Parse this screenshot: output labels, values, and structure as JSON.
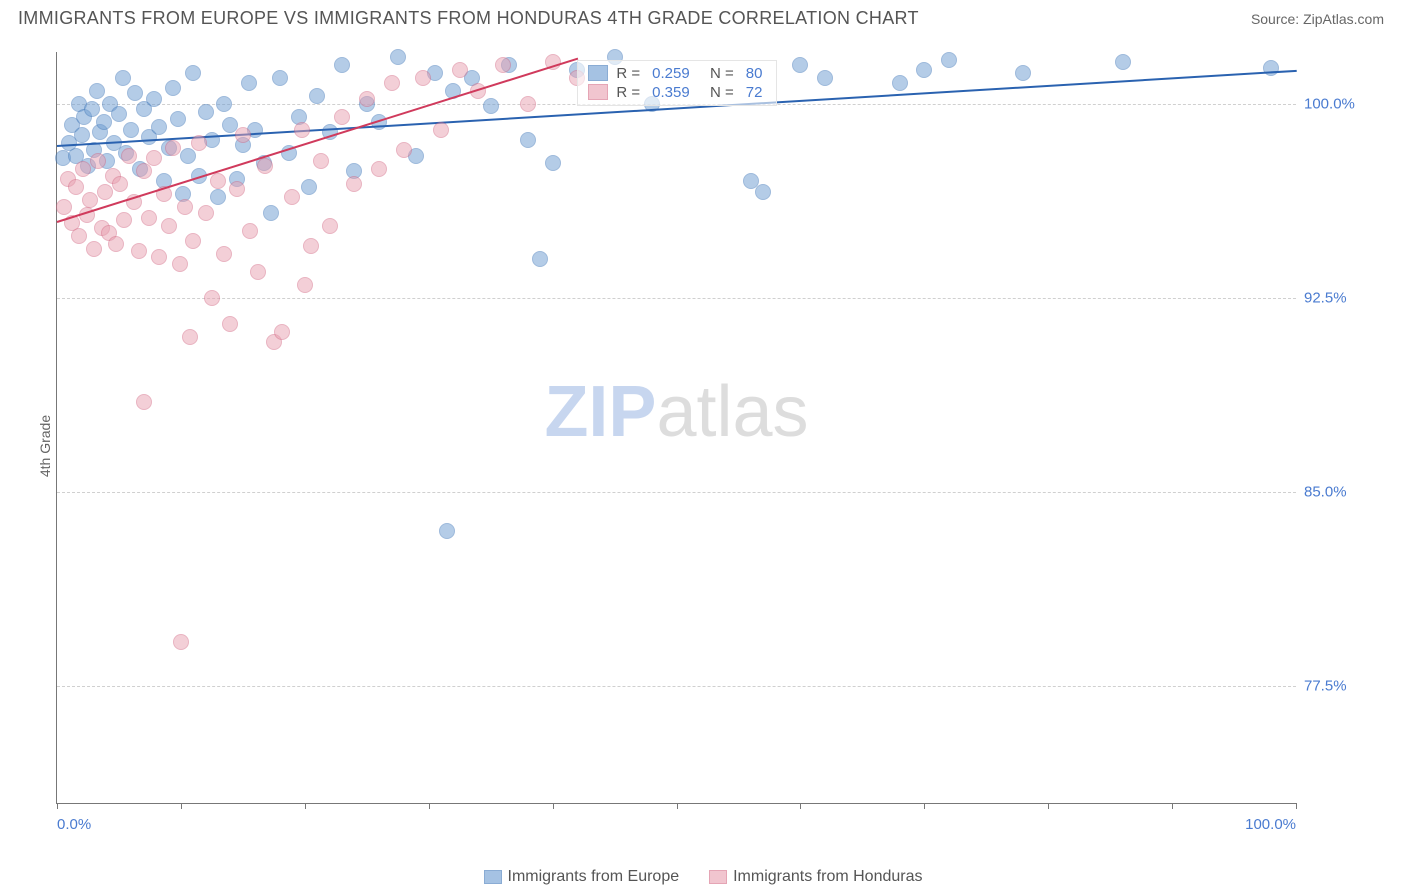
{
  "title": "IMMIGRANTS FROM EUROPE VS IMMIGRANTS FROM HONDURAS 4TH GRADE CORRELATION CHART",
  "source": "Source: ZipAtlas.com",
  "ylabel": "4th Grade",
  "watermark_bold": "ZIP",
  "watermark_light": "atlas",
  "chart": {
    "type": "scatter",
    "xlim": [
      0,
      100
    ],
    "ylim": [
      73,
      102
    ],
    "x_ticks": [
      0,
      10,
      20,
      30,
      40,
      50,
      60,
      70,
      80,
      90,
      100
    ],
    "x_tick_labels": {
      "0": "0.0%",
      "100": "100.0%"
    },
    "y_ticks": [
      77.5,
      85.0,
      92.5,
      100.0
    ],
    "y_tick_labels": [
      "77.5%",
      "85.0%",
      "92.5%",
      "100.0%"
    ],
    "grid_color": "#d0d0d0",
    "axis_color": "#777777",
    "background_color": "#ffffff",
    "tick_label_color": "#4a7bd0",
    "tick_label_fontsize": 15,
    "marker_radius": 8,
    "marker_fill_opacity": 0.35,
    "marker_stroke_opacity": 0.9,
    "series": [
      {
        "name": "Immigrants from Europe",
        "color": "#6b9bd1",
        "stroke_color": "#3e76b8",
        "R": 0.259,
        "N": 80,
        "trend": {
          "x1": 0,
          "y1": 98.4,
          "x2": 100,
          "y2": 101.3,
          "color": "#2a62b0",
          "width": 2
        },
        "points": [
          [
            0.5,
            97.9
          ],
          [
            1,
            98.5
          ],
          [
            1.2,
            99.2
          ],
          [
            1.5,
            98.0
          ],
          [
            1.8,
            100.0
          ],
          [
            2,
            98.8
          ],
          [
            2.2,
            99.5
          ],
          [
            2.5,
            97.6
          ],
          [
            2.8,
            99.8
          ],
          [
            3,
            98.2
          ],
          [
            3.2,
            100.5
          ],
          [
            3.5,
            98.9
          ],
          [
            3.8,
            99.3
          ],
          [
            4,
            97.8
          ],
          [
            4.3,
            100.0
          ],
          [
            4.6,
            98.5
          ],
          [
            5,
            99.6
          ],
          [
            5.3,
            101.0
          ],
          [
            5.6,
            98.1
          ],
          [
            6,
            99.0
          ],
          [
            6.3,
            100.4
          ],
          [
            6.7,
            97.5
          ],
          [
            7,
            99.8
          ],
          [
            7.4,
            98.7
          ],
          [
            7.8,
            100.2
          ],
          [
            8.2,
            99.1
          ],
          [
            8.6,
            97.0
          ],
          [
            9,
            98.3
          ],
          [
            9.4,
            100.6
          ],
          [
            9.8,
            99.4
          ],
          [
            10.2,
            96.5
          ],
          [
            10.6,
            98.0
          ],
          [
            11,
            101.2
          ],
          [
            11.5,
            97.2
          ],
          [
            12,
            99.7
          ],
          [
            12.5,
            98.6
          ],
          [
            13,
            96.4
          ],
          [
            13.5,
            100.0
          ],
          [
            14,
            99.2
          ],
          [
            14.5,
            97.1
          ],
          [
            15,
            98.4
          ],
          [
            15.5,
            100.8
          ],
          [
            16,
            99.0
          ],
          [
            16.7,
            97.7
          ],
          [
            17.3,
            95.8
          ],
          [
            18,
            101.0
          ],
          [
            18.7,
            98.1
          ],
          [
            19.5,
            99.5
          ],
          [
            20.3,
            96.8
          ],
          [
            21,
            100.3
          ],
          [
            22,
            98.9
          ],
          [
            23,
            101.5
          ],
          [
            24,
            97.4
          ],
          [
            25,
            100.0
          ],
          [
            26,
            99.3
          ],
          [
            27.5,
            101.8
          ],
          [
            29,
            98.0
          ],
          [
            30.5,
            101.2
          ],
          [
            31.5,
            83.5
          ],
          [
            32,
            100.5
          ],
          [
            33.5,
            101.0
          ],
          [
            35,
            99.9
          ],
          [
            36.5,
            101.5
          ],
          [
            38,
            98.6
          ],
          [
            39,
            94.0
          ],
          [
            40,
            97.7
          ],
          [
            42,
            101.3
          ],
          [
            45,
            101.8
          ],
          [
            48,
            100.0
          ],
          [
            56,
            97.0
          ],
          [
            57,
            96.6
          ],
          [
            60,
            101.5
          ],
          [
            62,
            101.0
          ],
          [
            68,
            100.8
          ],
          [
            70,
            101.3
          ],
          [
            72,
            101.7
          ],
          [
            78,
            101.2
          ],
          [
            86,
            101.6
          ],
          [
            98,
            101.4
          ]
        ]
      },
      {
        "name": "Immigrants from Honduras",
        "color": "#e8a0b0",
        "stroke_color": "#d46a85",
        "R": 0.359,
        "N": 72,
        "trend": {
          "x1": 0,
          "y1": 95.5,
          "x2": 42,
          "y2": 101.8,
          "color": "#d03a5c",
          "width": 2
        },
        "points": [
          [
            0.6,
            96.0
          ],
          [
            0.9,
            97.1
          ],
          [
            1.2,
            95.4
          ],
          [
            1.5,
            96.8
          ],
          [
            1.8,
            94.9
          ],
          [
            2.1,
            97.5
          ],
          [
            2.4,
            95.7
          ],
          [
            2.7,
            96.3
          ],
          [
            3,
            94.4
          ],
          [
            3.3,
            97.8
          ],
          [
            3.6,
            95.2
          ],
          [
            3.9,
            96.6
          ],
          [
            4.2,
            95.0
          ],
          [
            4.5,
            97.2
          ],
          [
            4.8,
            94.6
          ],
          [
            5.1,
            96.9
          ],
          [
            5.4,
            95.5
          ],
          [
            5.8,
            98.0
          ],
          [
            6.2,
            96.2
          ],
          [
            6.6,
            94.3
          ],
          [
            7,
            97.4
          ],
          [
            7,
            88.5
          ],
          [
            7.4,
            95.6
          ],
          [
            7.8,
            97.9
          ],
          [
            8.2,
            94.1
          ],
          [
            8.6,
            96.5
          ],
          [
            9,
            95.3
          ],
          [
            9.4,
            98.3
          ],
          [
            9.9,
            93.8
          ],
          [
            10,
            79.2
          ],
          [
            10.3,
            96.0
          ],
          [
            10.7,
            91.0
          ],
          [
            11,
            94.7
          ],
          [
            11.5,
            98.5
          ],
          [
            12,
            95.8
          ],
          [
            12.5,
            92.5
          ],
          [
            13,
            97.0
          ],
          [
            13.5,
            94.2
          ],
          [
            14,
            91.5
          ],
          [
            14.5,
            96.7
          ],
          [
            15,
            98.8
          ],
          [
            15.6,
            95.1
          ],
          [
            16.2,
            93.5
          ],
          [
            16.8,
            97.6
          ],
          [
            17.5,
            90.8
          ],
          [
            18.2,
            91.2
          ],
          [
            19,
            96.4
          ],
          [
            19.8,
            99.0
          ],
          [
            20,
            93.0
          ],
          [
            20.5,
            94.5
          ],
          [
            21.3,
            97.8
          ],
          [
            22,
            95.3
          ],
          [
            23,
            99.5
          ],
          [
            24,
            96.9
          ],
          [
            25,
            100.2
          ],
          [
            26,
            97.5
          ],
          [
            27,
            100.8
          ],
          [
            28,
            98.2
          ],
          [
            29.5,
            101.0
          ],
          [
            31,
            99.0
          ],
          [
            32.5,
            101.3
          ],
          [
            34,
            100.5
          ],
          [
            36,
            101.5
          ],
          [
            38,
            100.0
          ],
          [
            40,
            101.6
          ],
          [
            42,
            101.0
          ]
        ]
      }
    ],
    "inner_legend": {
      "left_pct": 42,
      "top_pct": 1
    },
    "bottom_legend": true
  }
}
